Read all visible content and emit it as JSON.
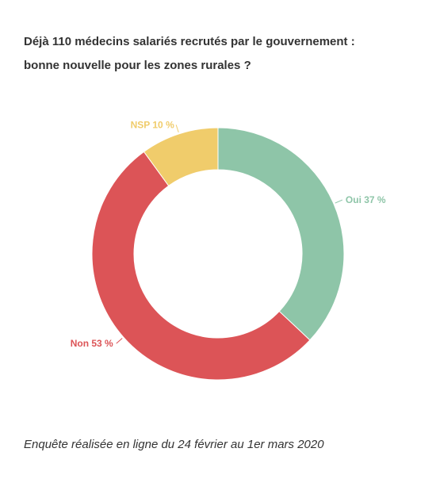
{
  "header": {
    "title_line1": "Déjà 110 médecins salariés recrutés par le gouvernement :",
    "title_line2": "bonne nouvelle pour les zones rurales ?"
  },
  "footer": {
    "note": "Enquête réalisée en ligne du 24 février au 1er mars 2020"
  },
  "chart_data": {
    "type": "pie",
    "variant": "donut",
    "title": "Déjà 110 médecins salariés recrutés par le gouvernement : bonne nouvelle pour les zones rurales ?",
    "unit": "%",
    "slices": [
      {
        "label": "Oui",
        "value": 37,
        "display": "Oui 37 %",
        "color": "#8ec5a8"
      },
      {
        "label": "Non",
        "value": 53,
        "display": "Non 53 %",
        "color": "#dc5457"
      },
      {
        "label": "NSP",
        "value": 10,
        "display": "NSP 10 %",
        "color": "#f0cc6b"
      }
    ],
    "start": "top",
    "direction": "clockwise",
    "legend": "none"
  }
}
